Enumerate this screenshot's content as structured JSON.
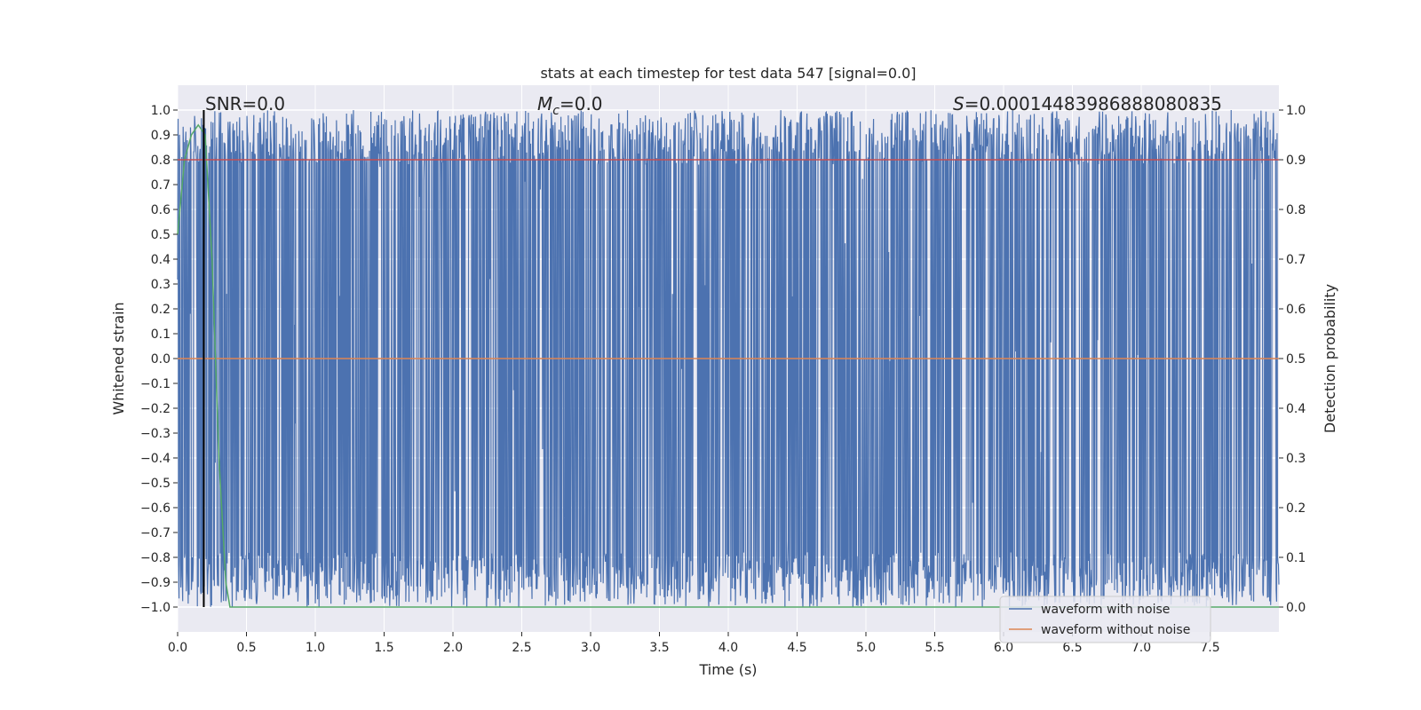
{
  "chart_data": {
    "type": "line",
    "title": "stats at each timestep for test data 547 [signal=0.0]",
    "xlabel": "Time (s)",
    "ylabel_left": "Whitened strain",
    "ylabel_right": "Detection probability",
    "xlim": [
      0.0,
      8.0
    ],
    "ylim_left": [
      -1.1,
      1.1
    ],
    "ylim_right": [
      -0.05,
      1.05
    ],
    "x_ticks": [
      "0.0",
      "0.5",
      "1.0",
      "1.5",
      "2.0",
      "2.5",
      "3.0",
      "3.5",
      "4.0",
      "4.5",
      "5.0",
      "5.5",
      "6.0",
      "6.5",
      "7.0",
      "7.5"
    ],
    "y_ticks_left": [
      "1.0",
      "0.9",
      "0.8",
      "0.7",
      "0.6",
      "0.5",
      "0.4",
      "0.3",
      "0.2",
      "0.1",
      "0.0",
      "−0.1",
      "−0.2",
      "−0.3",
      "−0.4",
      "−0.5",
      "−0.6",
      "−0.7",
      "−0.8",
      "−0.9",
      "−1.0"
    ],
    "y_ticks_right": [
      "1.0",
      "0.9",
      "0.8",
      "0.7",
      "0.6",
      "0.5",
      "0.4",
      "0.3",
      "0.2",
      "0.1",
      "0.0"
    ],
    "grid": true,
    "annotations": {
      "snr": "SNR=0.0",
      "mc_symbol": "M",
      "mc_sub": "c",
      "mc_value": "=0.0",
      "s_symbol": "S",
      "s_value": "=0.00014483986888080835"
    },
    "marker_line_x": 0.19,
    "series": [
      {
        "name": "waveform with noise",
        "color": "#4c72b0",
        "axis": "left",
        "description_range": [
          -1.0,
          1.0
        ]
      },
      {
        "name": "waveform without noise",
        "color": "#dd8452",
        "axis": "left",
        "values_constant": 0.0
      },
      {
        "axis": "right",
        "color": "#55a868",
        "x": [
          0.0,
          0.05,
          0.1,
          0.15,
          0.2,
          0.25,
          0.3,
          0.35,
          0.38,
          0.45,
          1.0,
          2.0,
          3.0,
          4.0,
          5.0,
          6.0,
          7.0,
          8.0
        ],
        "values": [
          0.75,
          0.9,
          0.95,
          0.97,
          0.95,
          0.7,
          0.3,
          0.05,
          0.0,
          0.0,
          0.0,
          0.0,
          0.0,
          0.0,
          0.0,
          0.0,
          0.0,
          0.0
        ]
      }
    ],
    "threshold_line": {
      "axis": "right",
      "value": 0.9,
      "color": "#c44e52"
    },
    "legend": {
      "placement": "lower-right",
      "entries": [
        "waveform with noise",
        "waveform without noise"
      ]
    }
  }
}
